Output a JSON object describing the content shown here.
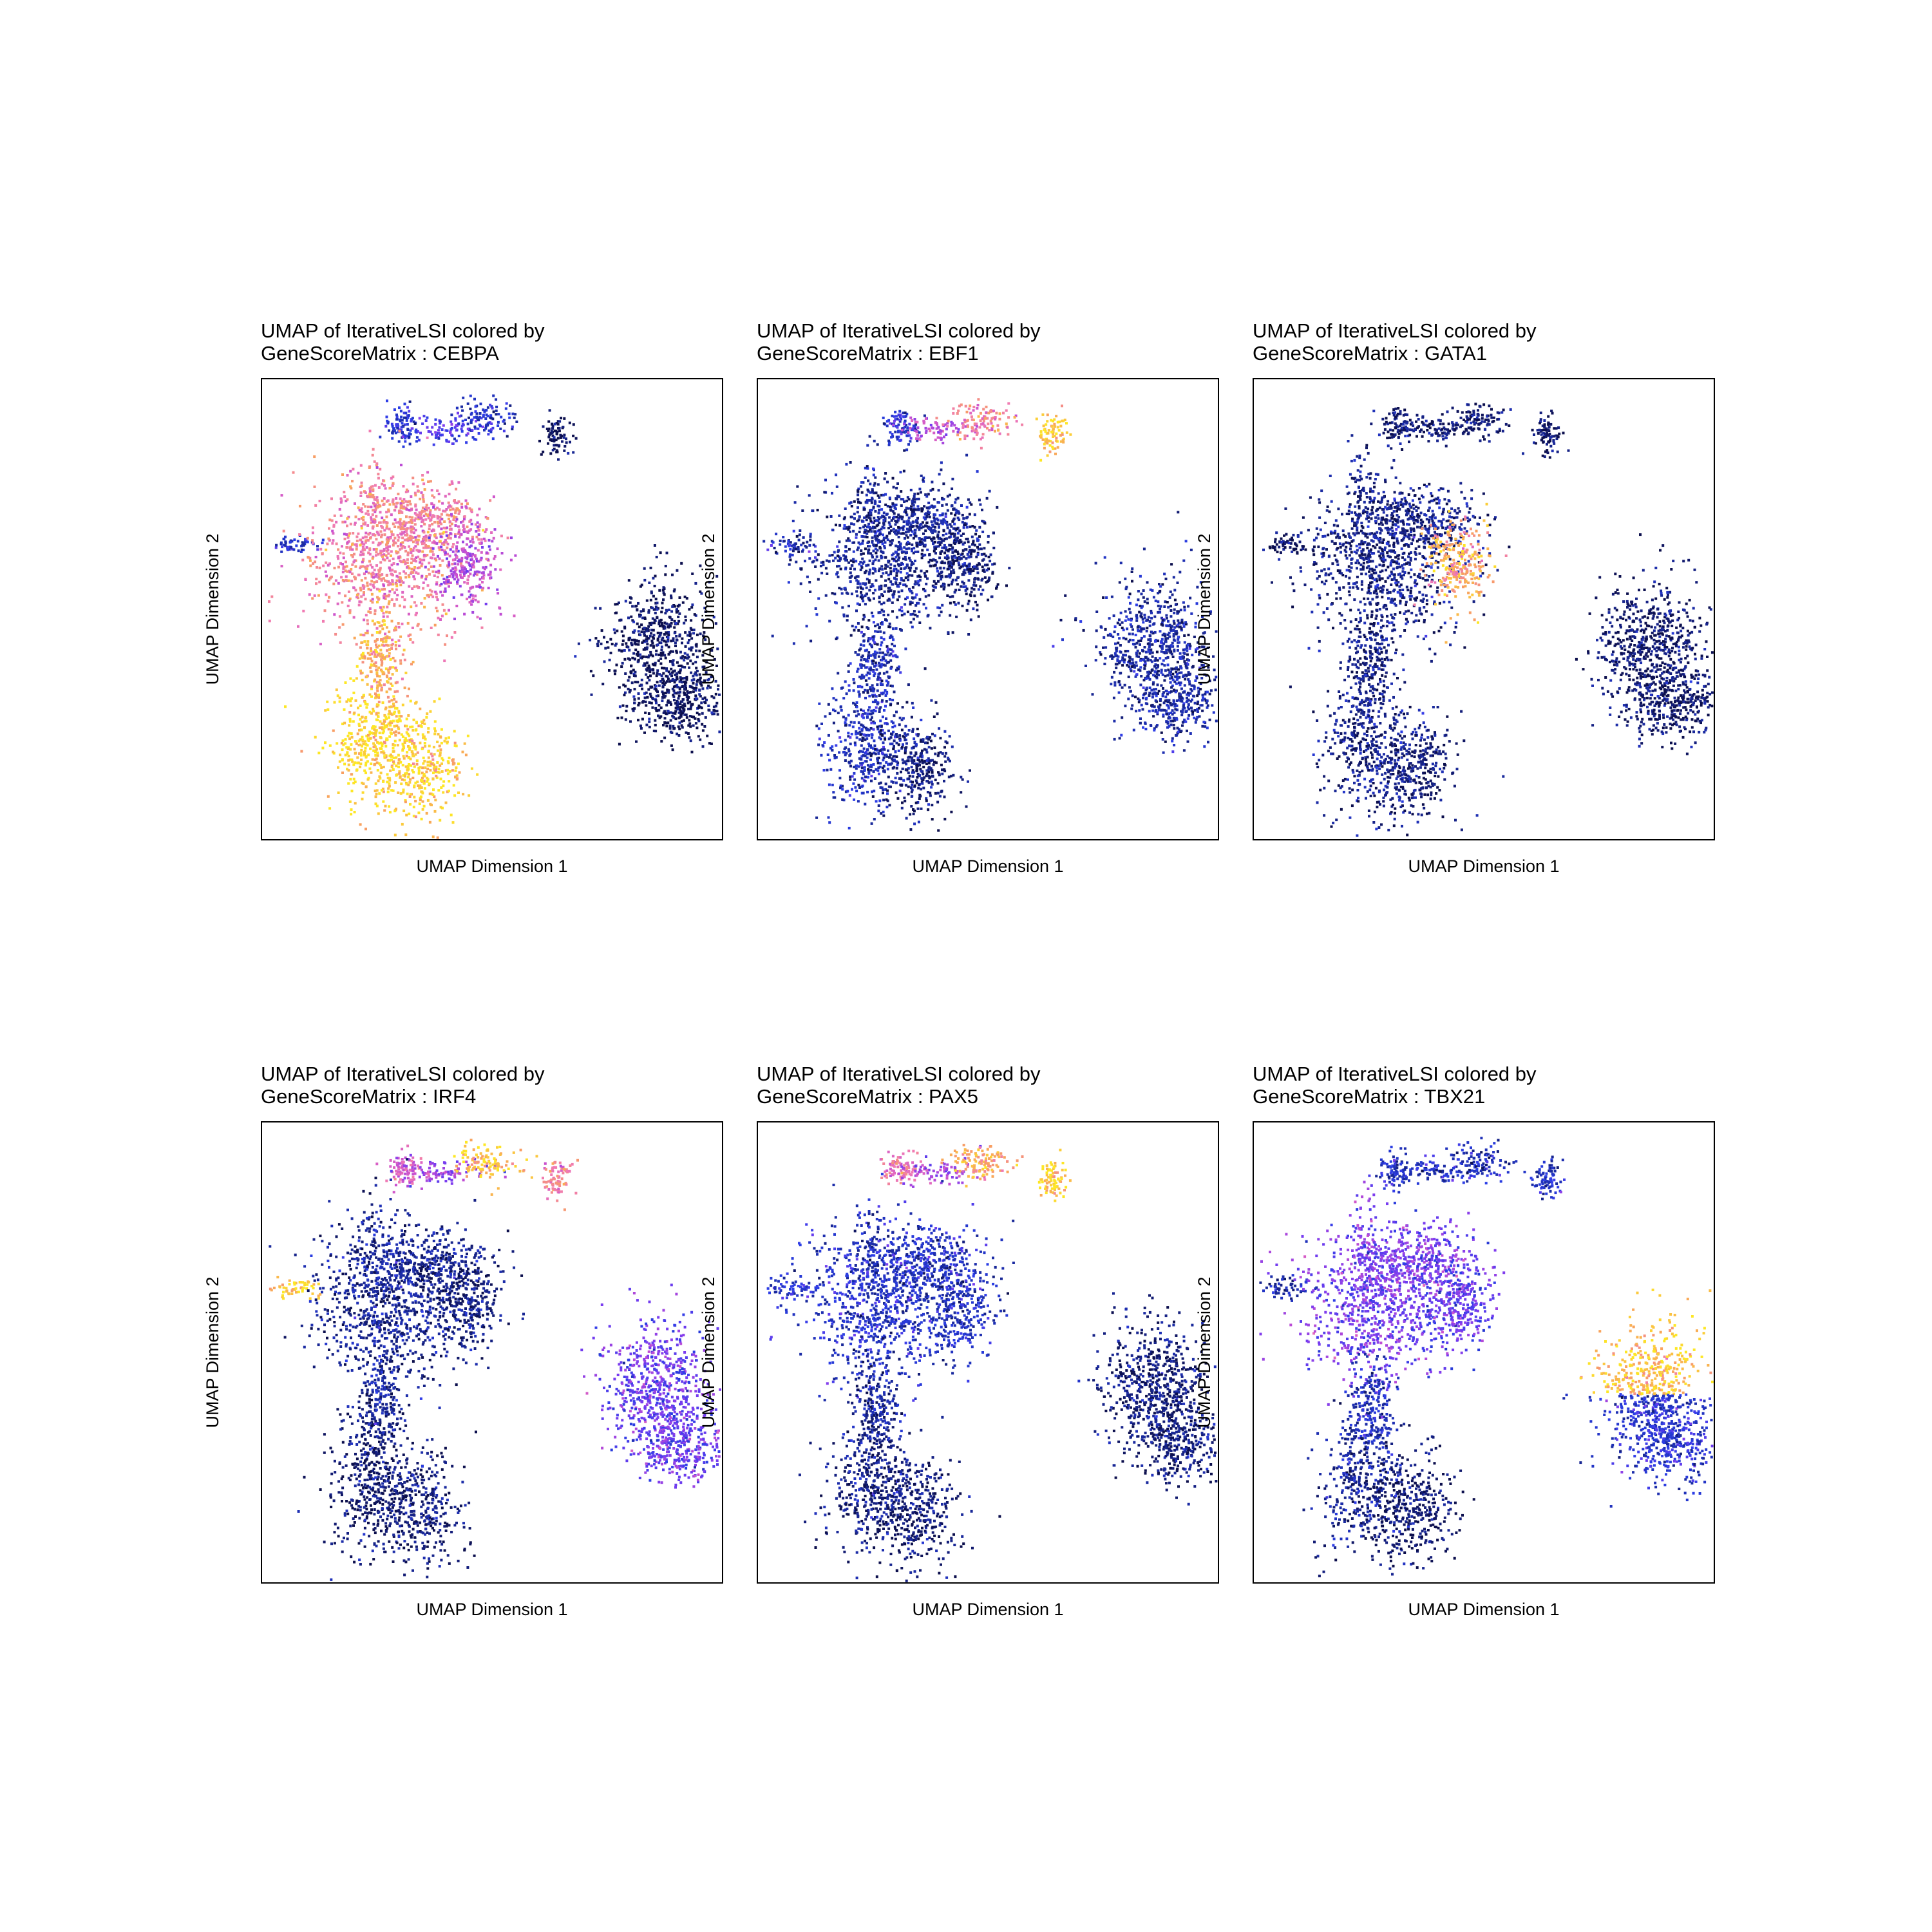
{
  "figure": {
    "x_label": "UMAP Dimension 1",
    "y_label": "UMAP Dimension 2"
  },
  "color_scale": {
    "name": "plasma-like",
    "stops": [
      "#0c0f4d",
      "#1a2a9e",
      "#2b3ee6",
      "#7a3cf0",
      "#c84fd0",
      "#f07ab4",
      "#f8a060",
      "#fde725"
    ]
  },
  "panels": [
    {
      "title_line1": "UMAP of IterativeLSI colored by",
      "title_line2": "GeneScoreMatrix : CEBPA"
    },
    {
      "title_line1": "UMAP of IterativeLSI colored by",
      "title_line2": "GeneScoreMatrix : EBF1"
    },
    {
      "title_line1": "UMAP of IterativeLSI colored by",
      "title_line2": "GeneScoreMatrix : GATA1"
    },
    {
      "title_line1": "UMAP of IterativeLSI colored by",
      "title_line2": "GeneScoreMatrix : IRF4"
    },
    {
      "title_line1": "UMAP of IterativeLSI colored by",
      "title_line2": "GeneScoreMatrix : PAX5"
    },
    {
      "title_line1": "UMAP of IterativeLSI colored by",
      "title_line2": "GeneScoreMatrix : TBX21"
    }
  ],
  "chart_data": [
    {
      "type": "scatter",
      "title": "UMAP of IterativeLSI colored by GeneScoreMatrix : CEBPA",
      "xlabel": "UMAP Dimension 1",
      "ylabel": "UMAP Dimension 2",
      "gene": "CEBPA",
      "cluster_scores": {
        "top_left_blob": 0.25,
        "bridge": 0.35,
        "top_arc": 0.22,
        "top_right_blob": 0.02,
        "left_tip": 0.22,
        "central_mass": 0.74,
        "central_right_lobe": 0.55,
        "stem": 0.88,
        "bottom_left": 0.98,
        "bottom_right": 0.96,
        "right_island": 0.03
      }
    },
    {
      "type": "scatter",
      "title": "UMAP of IterativeLSI colored by GeneScoreMatrix : EBF1",
      "xlabel": "UMAP Dimension 1",
      "ylabel": "UMAP Dimension 2",
      "gene": "EBF1",
      "cluster_scores": {
        "top_left_blob": 0.25,
        "bridge": 0.55,
        "top_arc": 0.75,
        "top_right_blob": 0.95,
        "left_tip": 0.2,
        "central_mass": 0.12,
        "central_right_lobe": 0.06,
        "stem": 0.18,
        "bottom_left": 0.2,
        "bottom_right": 0.08,
        "right_island": 0.15
      }
    },
    {
      "type": "scatter",
      "title": "UMAP of IterativeLSI colored by GeneScoreMatrix : GATA1",
      "xlabel": "UMAP Dimension 1",
      "ylabel": "UMAP Dimension 2",
      "gene": "GATA1",
      "cluster_scores": {
        "top_left_blob": 0.05,
        "bridge": 0.08,
        "top_arc": 0.06,
        "top_right_blob": 0.05,
        "left_tip": 0.03,
        "central_mass": 0.1,
        "central_right_lobe": 0.86,
        "stem": 0.1,
        "bottom_left": 0.1,
        "bottom_right": 0.08,
        "right_island": 0.05
      }
    },
    {
      "type": "scatter",
      "title": "UMAP of IterativeLSI colored by GeneScoreMatrix : IRF4",
      "xlabel": "UMAP Dimension 1",
      "ylabel": "UMAP Dimension 2",
      "gene": "IRF4",
      "cluster_scores": {
        "top_left_blob": 0.62,
        "bridge": 0.5,
        "top_arc": 0.93,
        "top_right_blob": 0.75,
        "left_tip": 0.95,
        "central_mass": 0.12,
        "central_right_lobe": 0.08,
        "stem": 0.12,
        "bottom_left": 0.06,
        "bottom_right": 0.07,
        "right_island": 0.4
      }
    },
    {
      "type": "scatter",
      "title": "UMAP of IterativeLSI colored by GeneScoreMatrix : PAX5",
      "xlabel": "UMAP Dimension 1",
      "ylabel": "UMAP Dimension 2",
      "gene": "PAX5",
      "cluster_scores": {
        "top_left_blob": 0.7,
        "bridge": 0.5,
        "top_arc": 0.85,
        "top_right_blob": 0.95,
        "left_tip": 0.25,
        "central_mass": 0.22,
        "central_right_lobe": 0.2,
        "stem": 0.14,
        "bottom_left": 0.1,
        "bottom_right": 0.06,
        "right_island": 0.08
      }
    },
    {
      "type": "scatter",
      "title": "UMAP of IterativeLSI colored by GeneScoreMatrix : TBX21",
      "xlabel": "UMAP Dimension 1",
      "ylabel": "UMAP Dimension 2",
      "gene": "TBX21",
      "cluster_scores": {
        "top_left_blob": 0.22,
        "bridge": 0.22,
        "top_arc": 0.2,
        "top_right_blob": 0.22,
        "left_tip": 0.15,
        "central_mass": 0.42,
        "central_right_lobe": 0.38,
        "stem": 0.2,
        "bottom_left": 0.12,
        "bottom_right": 0.04,
        "right_island_upper": 0.92,
        "right_island_lower": 0.25
      }
    }
  ]
}
